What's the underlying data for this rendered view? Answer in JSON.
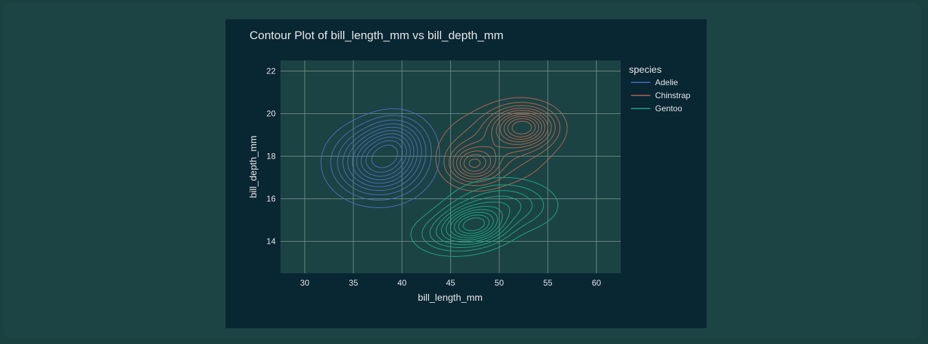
{
  "chart_data": {
    "type": "contour",
    "title": "Contour Plot of bill_length_mm vs bill_depth_mm",
    "xlabel": "bill_length_mm",
    "ylabel": "bill_depth_mm",
    "xlim": [
      27.5,
      62.5
    ],
    "ylim": [
      12.5,
      22.5
    ],
    "x_ticks": [
      30,
      35,
      40,
      45,
      50,
      55,
      60
    ],
    "y_ticks": [
      14,
      16,
      18,
      20,
      22
    ],
    "grid": true,
    "legend": {
      "title": "species",
      "placement": "right"
    },
    "colors": {
      "paper": "#092633",
      "plot_bg": "#1c4343",
      "grid": "#7a9a92",
      "text": "#e8e8e8"
    },
    "series": [
      {
        "name": "Adelie",
        "color": "#4a6fc2",
        "peaks": [
          {
            "x": 37.6,
            "y": 17.7,
            "sx": 2.8,
            "sy": 1.0,
            "w": 1.0
          },
          {
            "x": 39.5,
            "y": 18.7,
            "sx": 2.0,
            "sy": 0.8,
            "w": 0.45
          }
        ]
      },
      {
        "name": "Chinstrap",
        "color": "#b86452",
        "peaks": [
          {
            "x": 52.5,
            "y": 19.4,
            "sx": 2.0,
            "sy": 0.6,
            "w": 1.0
          },
          {
            "x": 47.3,
            "y": 17.6,
            "sx": 1.6,
            "sy": 0.55,
            "w": 0.65
          },
          {
            "x": 49.5,
            "y": 18.4,
            "sx": 3.5,
            "sy": 1.1,
            "w": 0.35
          }
        ]
      },
      {
        "name": "Gentoo",
        "color": "#1aaa86",
        "peaks": [
          {
            "x": 47.5,
            "y": 14.8,
            "sx": 2.0,
            "sy": 0.55,
            "w": 1.0
          },
          {
            "x": 50.5,
            "y": 15.7,
            "sx": 3.2,
            "sy": 0.75,
            "w": 0.55
          },
          {
            "x": 45.0,
            "y": 14.3,
            "sx": 2.5,
            "sy": 0.6,
            "w": 0.45
          }
        ]
      }
    ]
  }
}
